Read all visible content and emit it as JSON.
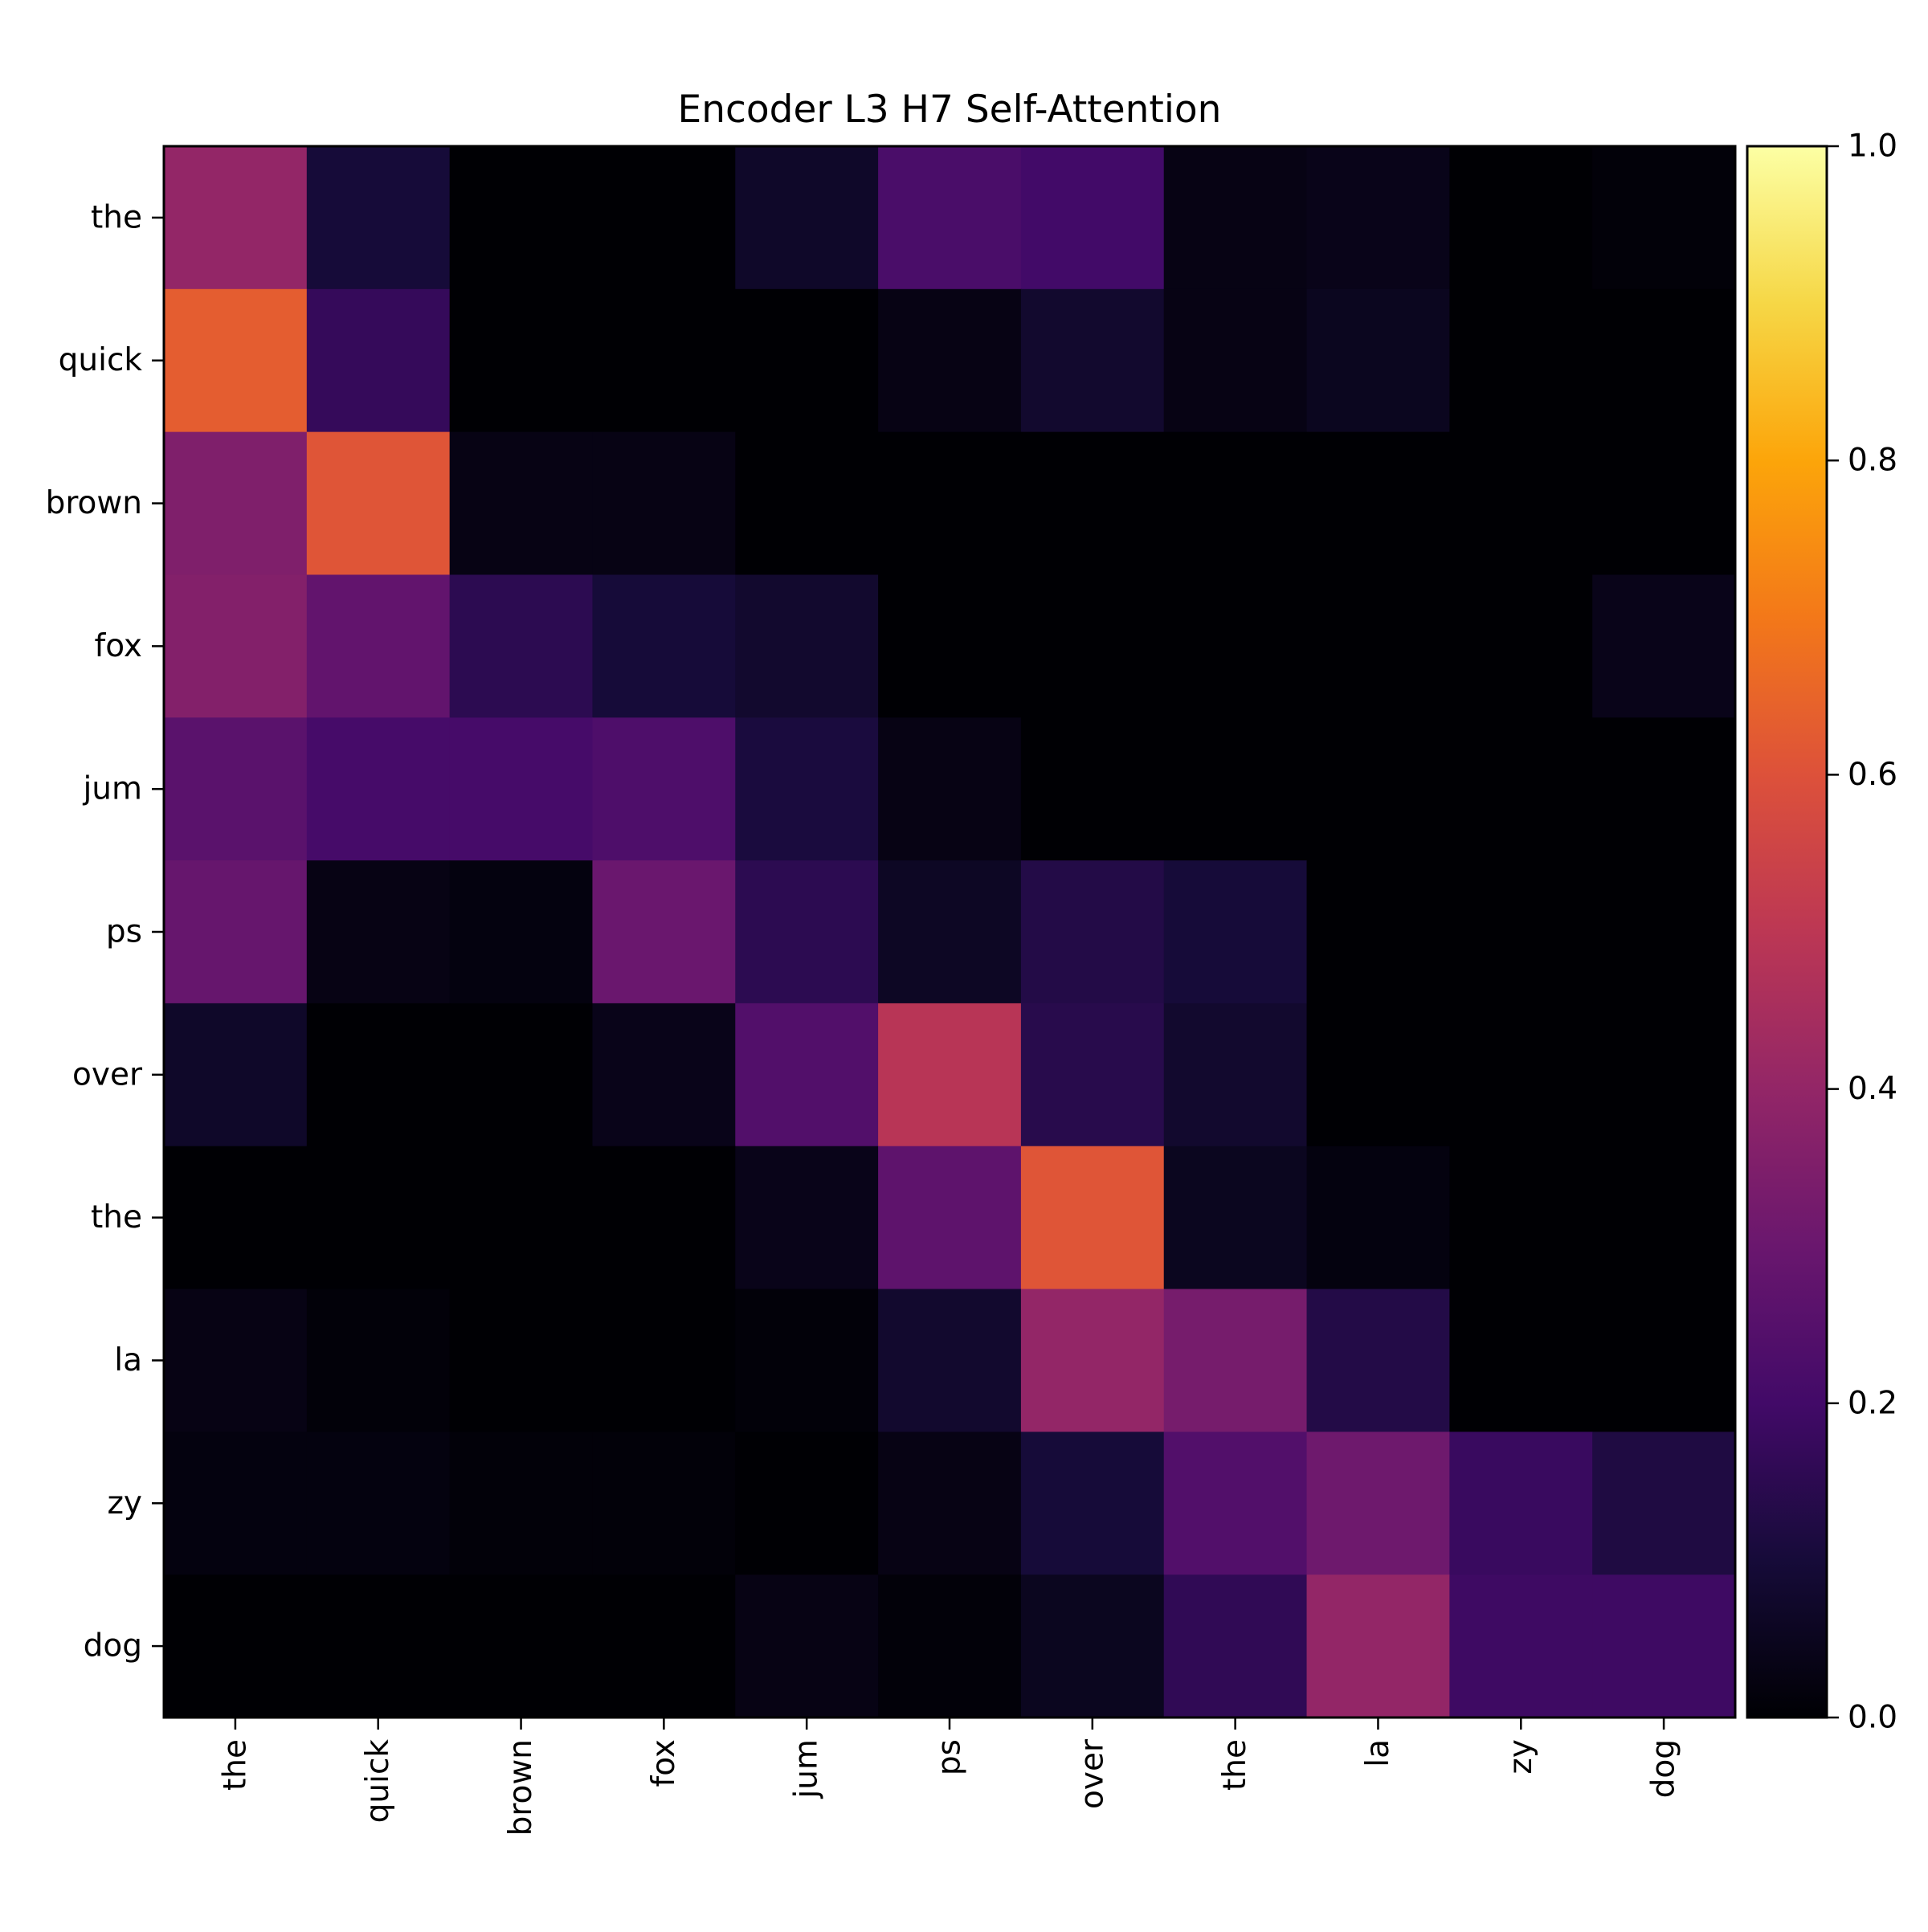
{
  "chart_data": {
    "type": "heatmap",
    "title": "Encoder L3 H7 Self-Attention",
    "xlabel": "",
    "ylabel": "",
    "x_tokens": [
      "the",
      "quick",
      "brown",
      "fox",
      "jum",
      "ps",
      "over",
      "the",
      "la",
      "zy",
      "dog"
    ],
    "y_tokens": [
      "the",
      "quick",
      "brown",
      "fox",
      "jum",
      "ps",
      "over",
      "the",
      "la",
      "zy",
      "dog"
    ],
    "values": [
      [
        0.4,
        0.1,
        0.0,
        0.0,
        0.07,
        0.22,
        0.2,
        0.03,
        0.04,
        0.0,
        0.01
      ],
      [
        0.63,
        0.17,
        0.0,
        0.0,
        0.0,
        0.03,
        0.08,
        0.03,
        0.05,
        0.0,
        0.0
      ],
      [
        0.35,
        0.61,
        0.03,
        0.03,
        0.0,
        0.0,
        0.0,
        0.0,
        0.0,
        0.0,
        0.0
      ],
      [
        0.36,
        0.28,
        0.15,
        0.1,
        0.08,
        0.0,
        0.0,
        0.0,
        0.0,
        0.0,
        0.04
      ],
      [
        0.26,
        0.21,
        0.21,
        0.23,
        0.11,
        0.03,
        0.0,
        0.0,
        0.0,
        0.0,
        0.0
      ],
      [
        0.29,
        0.03,
        0.02,
        0.3,
        0.15,
        0.06,
        0.13,
        0.1,
        0.0,
        0.0,
        0.0
      ],
      [
        0.07,
        0.0,
        0.0,
        0.04,
        0.24,
        0.49,
        0.14,
        0.08,
        0.0,
        0.0,
        0.0
      ],
      [
        0.0,
        0.0,
        0.0,
        0.0,
        0.04,
        0.27,
        0.61,
        0.05,
        0.02,
        0.0,
        0.0
      ],
      [
        0.03,
        0.01,
        0.0,
        0.0,
        0.01,
        0.08,
        0.4,
        0.33,
        0.13,
        0.0,
        0.0
      ],
      [
        0.02,
        0.02,
        0.01,
        0.01,
        0.0,
        0.03,
        0.1,
        0.24,
        0.31,
        0.18,
        0.12
      ],
      [
        0.0,
        0.0,
        0.0,
        0.0,
        0.03,
        0.01,
        0.05,
        0.16,
        0.4,
        0.19,
        0.19
      ]
    ],
    "colormap": "inferno",
    "colorbar": {
      "range": [
        0.0,
        1.0
      ],
      "ticks": [
        0.0,
        0.2,
        0.4,
        0.6,
        0.8,
        1.0
      ],
      "tick_labels": [
        "0.0",
        "0.2",
        "0.4",
        "0.6",
        "0.8",
        "1.0"
      ]
    },
    "grid": false,
    "legend": "none"
  }
}
